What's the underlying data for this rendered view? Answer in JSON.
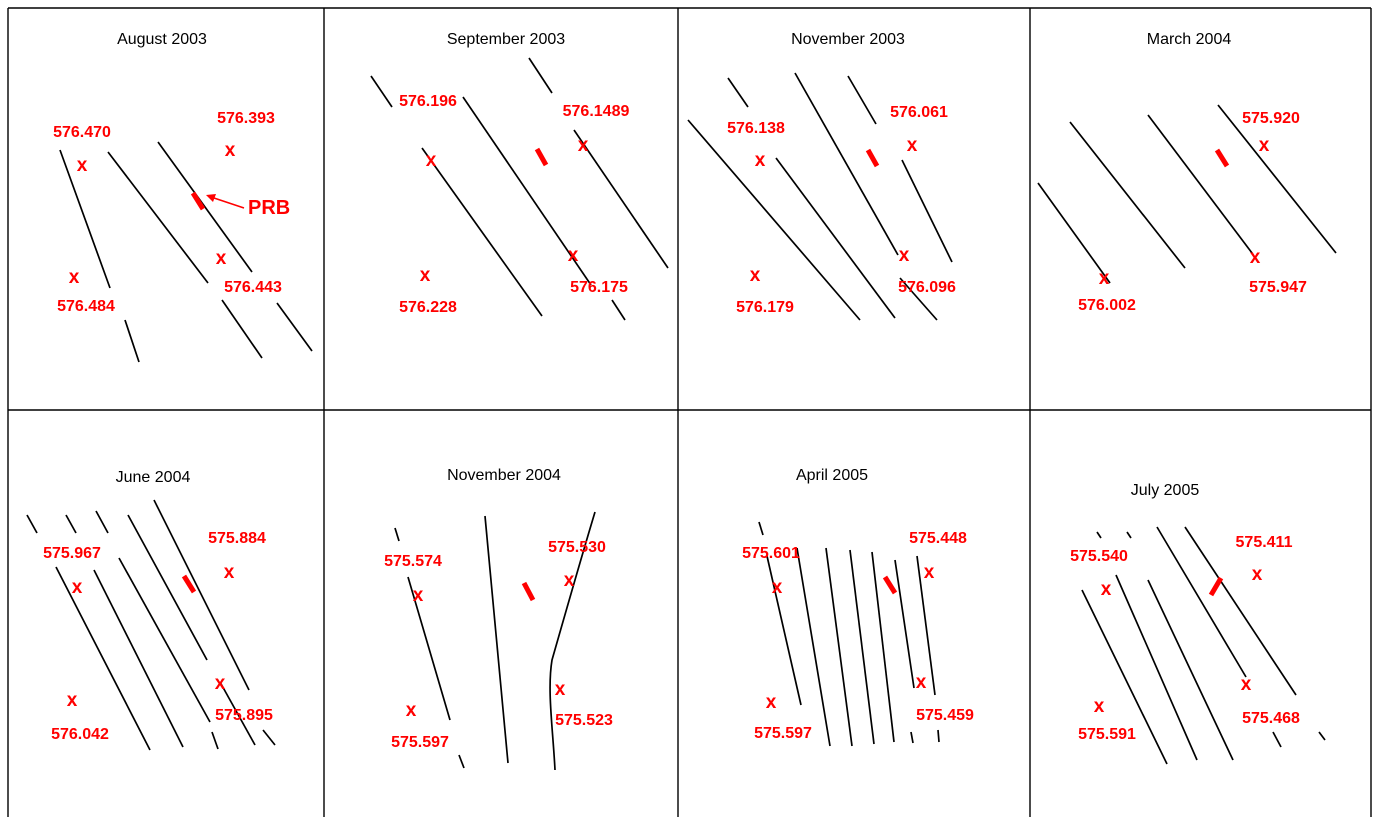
{
  "colors": {
    "label": "#ff0000",
    "line": "#000000",
    "background": "#ffffff"
  },
  "panels": [
    {
      "title": "August 2003",
      "wells": [
        "576.470",
        "576.393",
        "576.484",
        "576.443"
      ],
      "prb_label": "PRB"
    },
    {
      "title": "September 2003",
      "wells": [
        "576.196",
        "576.1489",
        "576.228",
        "576.175"
      ]
    },
    {
      "title": "November 2003",
      "wells": [
        "576.138",
        "576.061",
        "576.179",
        "576.096"
      ]
    },
    {
      "title": "March 2004",
      "wells": [
        "575.920",
        "576.002",
        "575.947"
      ]
    },
    {
      "title": "June 2004",
      "wells": [
        "575.967",
        "575.884",
        "576.042",
        "575.895"
      ]
    },
    {
      "title": "November 2004",
      "wells": [
        "575.574",
        "575.530",
        "575.597",
        "575.523"
      ]
    },
    {
      "title": "April 2005",
      "wells": [
        "575.601",
        "575.448",
        "575.597",
        "575.459"
      ]
    },
    {
      "title": "July 2005",
      "wells": [
        "575.540",
        "575.411",
        "575.591",
        "575.468"
      ]
    }
  ],
  "well_marker": "x"
}
